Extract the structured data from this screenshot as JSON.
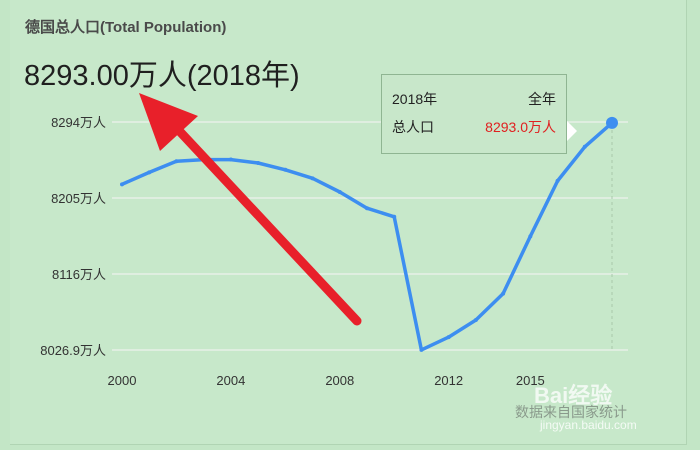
{
  "chart_title": "德国总人口(Total Population)",
  "headline": "8293.00万人(2018年)",
  "tooltip": {
    "year_label": "2018年",
    "period": "全年",
    "metric_label": "总人口",
    "metric_value": "8293.0万人"
  },
  "source_note": "数据来自国家统计",
  "logo": {
    "name": "Bai经验",
    "site": "jingyan.baidu.com"
  },
  "colors": {
    "line": "#3d8ef0",
    "arrow": "#e8202a",
    "tooltip_value": "#e02020",
    "grid": "#dfeee0"
  },
  "chart_data": {
    "type": "line",
    "title": "德国总人口(Total Population)",
    "xlabel": "",
    "ylabel": "",
    "x": [
      2000,
      2001,
      2002,
      2003,
      2004,
      2005,
      2006,
      2007,
      2008,
      2009,
      2010,
      2011,
      2012,
      2013,
      2014,
      2015,
      2016,
      2017,
      2018
    ],
    "series": [
      {
        "values": [
          8221,
          8235,
          8248,
          8250,
          8250,
          8246,
          8238,
          8228,
          8212,
          8193,
          8183,
          8027,
          8042,
          8062,
          8093,
          8160,
          8225,
          8265,
          8293
        ]
      }
    ],
    "y_ticks": [
      8294,
      8205,
      8116,
      8026.9
    ],
    "y_tick_labels": [
      "8294万人",
      "8205万人",
      "8116万人",
      "8026.9万人"
    ],
    "x_tick_labels": [
      "2000",
      "2004",
      "2008",
      "2012",
      "2015"
    ],
    "x_tick_values": [
      2000,
      2004,
      2008,
      2012,
      2015
    ],
    "ylim": [
      8026.9,
      8294
    ],
    "xlim": [
      2000,
      2018
    ],
    "grid": true,
    "highlight": {
      "x": 2018,
      "value": 8293
    }
  }
}
